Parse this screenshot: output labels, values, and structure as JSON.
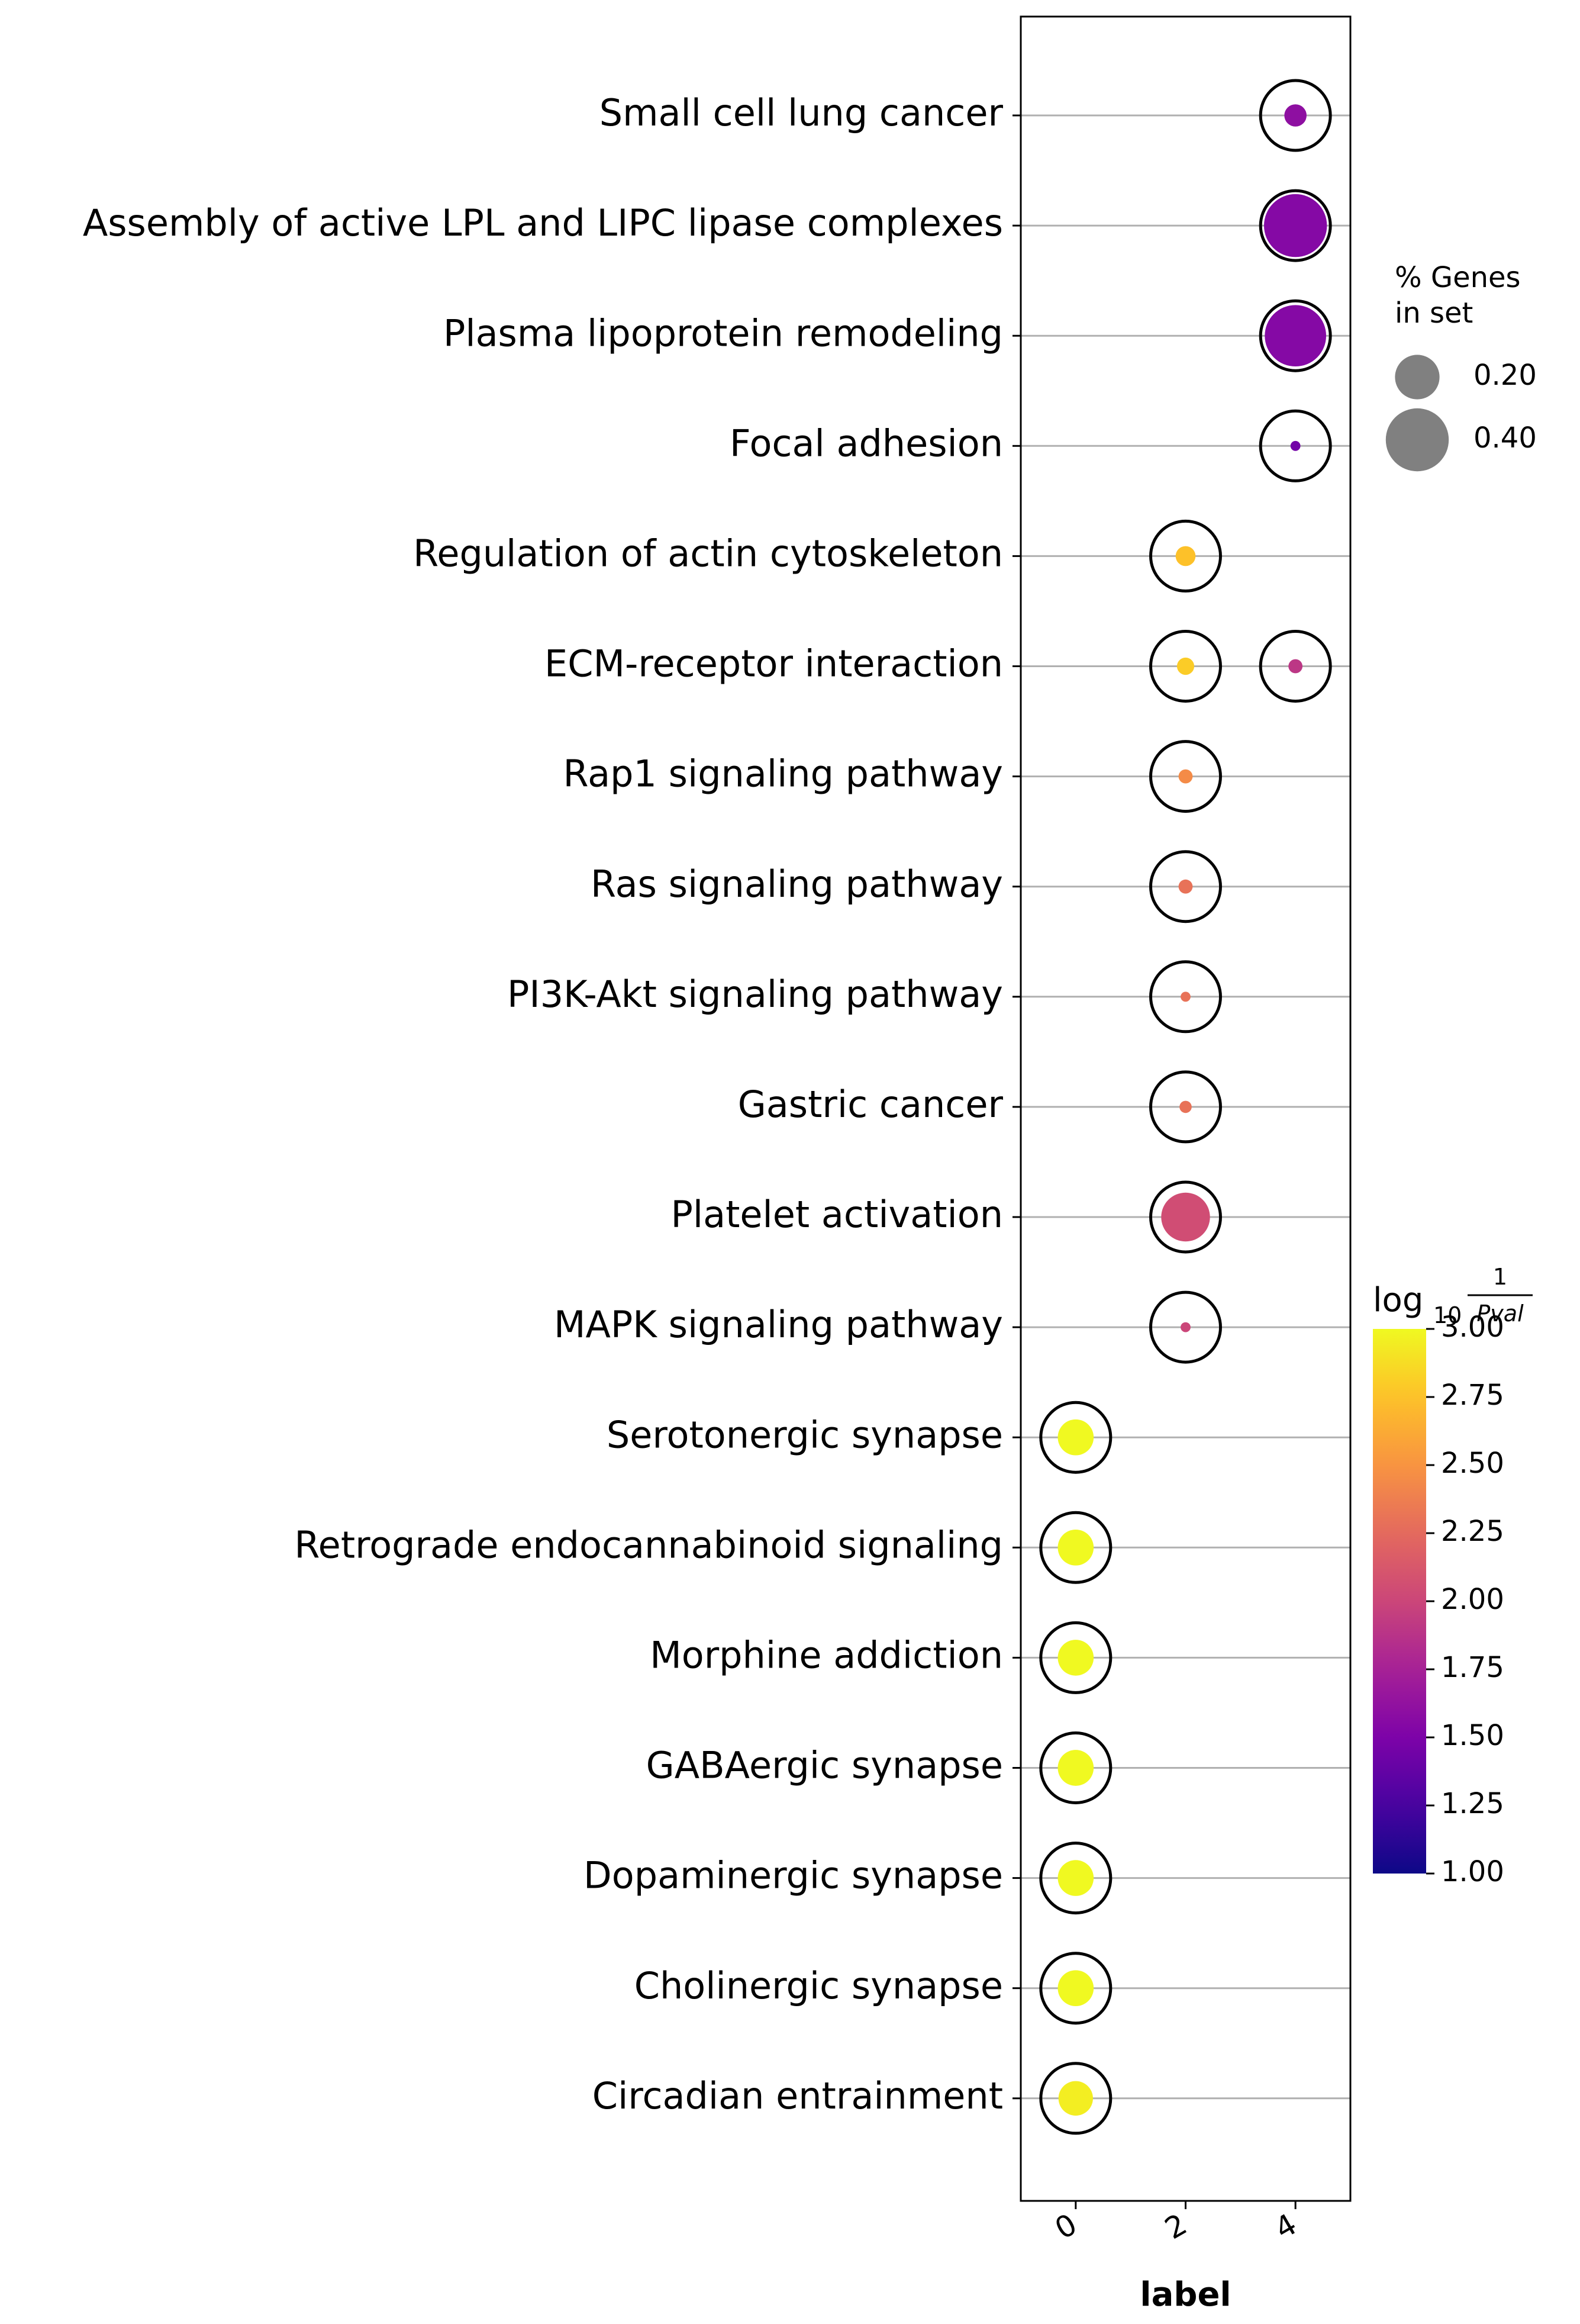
{
  "chart_data": {
    "type": "dotplot",
    "xlabel": "label",
    "x_ticks": [
      0,
      2,
      4
    ],
    "xlim": [
      -1,
      5
    ],
    "categories": [
      "Small cell lung cancer",
      "Assembly of active LPL and LIPC lipase complexes",
      "Plasma lipoprotein remodeling",
      "Focal adhesion",
      "Regulation of actin cytoskeleton",
      "ECM-receptor interaction",
      "Rap1 signaling pathway",
      "Ras signaling pathway",
      "PI3K-Akt signaling pathway",
      "Gastric cancer",
      "Platelet activation",
      "MAPK signaling pathway",
      "Serotonergic synapse",
      "Retrograde endocannabinoid signaling",
      "Morphine addiction",
      "GABAergic synapse",
      "Dopaminergic synapse",
      "Cholinergic synapse",
      "Circadian entrainment"
    ],
    "points": [
      {
        "category": "Small cell lung cancer",
        "x": 4,
        "pct_genes": 0.05,
        "log10_inv_pval": 1.6
      },
      {
        "category": "Assembly of active LPL and LIPC lipase complexes",
        "x": 4,
        "pct_genes": 0.4,
        "log10_inv_pval": 1.55
      },
      {
        "category": "Plasma lipoprotein remodeling",
        "x": 4,
        "pct_genes": 0.38,
        "log10_inv_pval": 1.55
      },
      {
        "category": "Focal adhesion",
        "x": 4,
        "pct_genes": 0.01,
        "log10_inv_pval": 1.45
      },
      {
        "category": "Regulation of actin cytoskeleton",
        "x": 2,
        "pct_genes": 0.04,
        "log10_inv_pval": 2.75
      },
      {
        "category": "ECM-receptor interaction",
        "x": 2,
        "pct_genes": 0.03,
        "log10_inv_pval": 2.8
      },
      {
        "category": "ECM-receptor interaction",
        "x": 4,
        "pct_genes": 0.02,
        "log10_inv_pval": 1.9
      },
      {
        "category": "Rap1 signaling pathway",
        "x": 2,
        "pct_genes": 0.02,
        "log10_inv_pval": 2.45
      },
      {
        "category": "Ras signaling pathway",
        "x": 2,
        "pct_genes": 0.02,
        "log10_inv_pval": 2.3
      },
      {
        "category": "PI3K-Akt signaling pathway",
        "x": 2,
        "pct_genes": 0.01,
        "log10_inv_pval": 2.3
      },
      {
        "category": "Gastric cancer",
        "x": 2,
        "pct_genes": 0.015,
        "log10_inv_pval": 2.3
      },
      {
        "category": "Platelet activation",
        "x": 2,
        "pct_genes": 0.24,
        "log10_inv_pval": 2.05
      },
      {
        "category": "MAPK signaling pathway",
        "x": 2,
        "pct_genes": 0.01,
        "log10_inv_pval": 2.0
      },
      {
        "category": "Serotonergic synapse",
        "x": 0,
        "pct_genes": 0.13,
        "log10_inv_pval": 3.0
      },
      {
        "category": "Retrograde endocannabinoid signaling",
        "x": 0,
        "pct_genes": 0.13,
        "log10_inv_pval": 3.0
      },
      {
        "category": "Morphine addiction",
        "x": 0,
        "pct_genes": 0.13,
        "log10_inv_pval": 3.0
      },
      {
        "category": "GABAergic synapse",
        "x": 0,
        "pct_genes": 0.13,
        "log10_inv_pval": 3.0
      },
      {
        "category": "Dopaminergic synapse",
        "x": 0,
        "pct_genes": 0.13,
        "log10_inv_pval": 3.0
      },
      {
        "category": "Cholinergic synapse",
        "x": 0,
        "pct_genes": 0.13,
        "log10_inv_pval": 3.0
      },
      {
        "category": "Circadian entrainment",
        "x": 0,
        "pct_genes": 0.12,
        "log10_inv_pval": 2.95
      }
    ],
    "size_legend": {
      "title_lines": [
        "% Genes",
        "in set"
      ],
      "entries": [
        {
          "label": "0.20",
          "value": 0.2
        },
        {
          "label": "0.40",
          "value": 0.4
        }
      ]
    },
    "colorbar": {
      "title_main": "log",
      "title_sub": "10",
      "title_num": "1",
      "title_den": "Pval",
      "range": [
        1.0,
        3.0
      ],
      "ticks": [
        "1.00",
        "1.25",
        "1.50",
        "1.75",
        "2.00",
        "2.25",
        "2.50",
        "2.75",
        "3.00"
      ],
      "colormap": "plasma"
    },
    "grid": "horizontal"
  }
}
